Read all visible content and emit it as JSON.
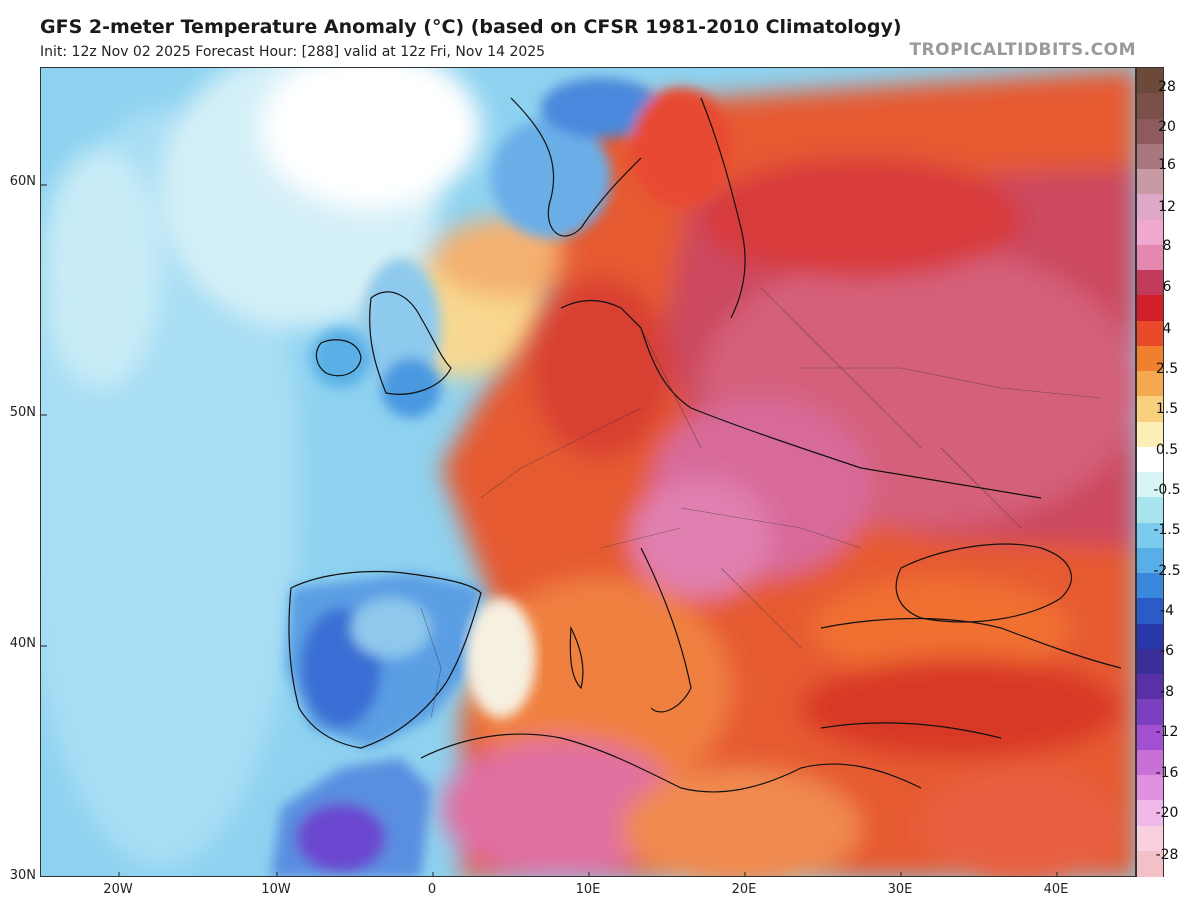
{
  "header": {
    "title": "GFS 2-meter Temperature Anomaly (°C) (based on CFSR 1981-2010 Climatology)",
    "subtitle": "Init: 12z Nov 02 2025   Forecast Hour: [288]   valid at 12z Fri, Nov 14 2025",
    "brand": "TROPICALTIDBITS.COM"
  },
  "map": {
    "lat_labels": [
      "60N",
      "50N",
      "40N",
      "30N"
    ],
    "lon_labels": [
      "20W",
      "10W",
      "0",
      "10E",
      "20E",
      "30E",
      "40E"
    ]
  },
  "colorbar": {
    "labels": [
      "28",
      "20",
      "16",
      "12",
      "8",
      "6",
      "4",
      "2.5",
      "1.5",
      "0.5",
      "-0.5",
      "-1.5",
      "-2.5",
      "-4",
      "-6",
      "-8",
      "-12",
      "-16",
      "-20",
      "-28"
    ],
    "colors": [
      "#6b4a3a",
      "#7a5048",
      "#8e5a5e",
      "#a8787e",
      "#c89aa4",
      "#e0a8c8",
      "#f0a8d0",
      "#e488b0",
      "#c23a5a",
      "#d21e28",
      "#e84a2a",
      "#f0802e",
      "#f4a850",
      "#f8d080",
      "#fcf0b8",
      "#ffffff",
      "#d8f4f4",
      "#a8e4ee",
      "#7ccbee",
      "#5aaee8",
      "#3a88dc",
      "#2a5cc8",
      "#2838a8",
      "#3c2e98",
      "#5a30a8",
      "#7a40c0",
      "#a050d0",
      "#c870d8",
      "#e090e0",
      "#f0b8e8",
      "#f8d0e0",
      "#f4c0c8"
    ]
  }
}
